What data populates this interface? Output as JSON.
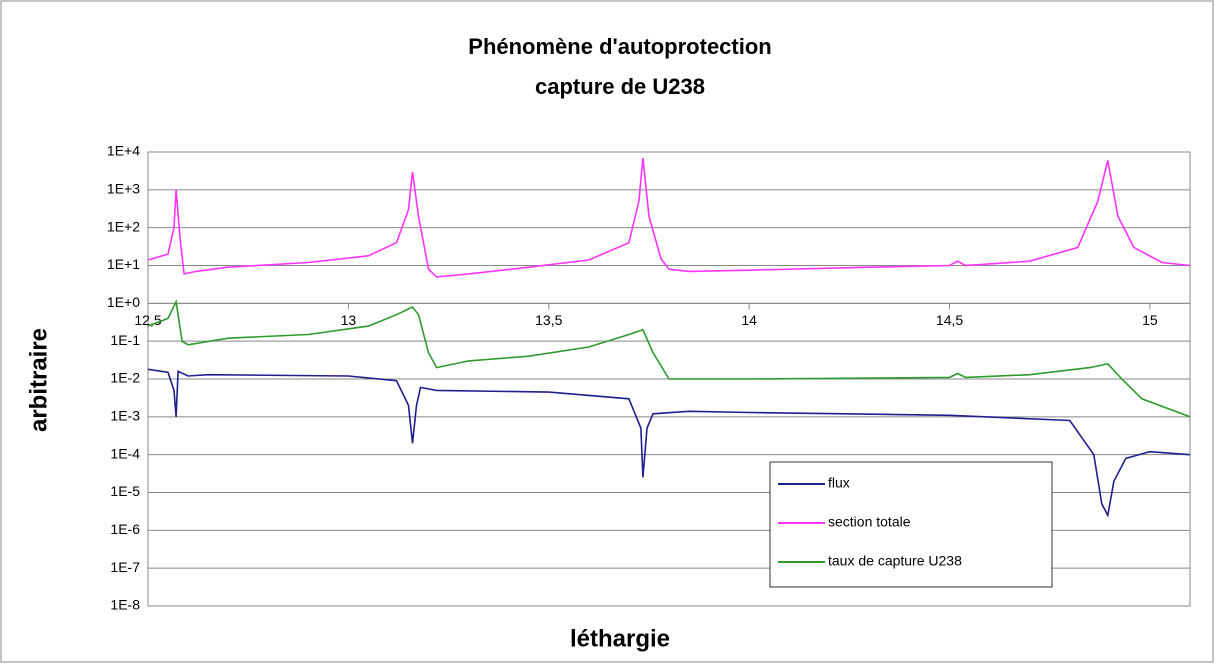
{
  "chart_data": {
    "type": "line",
    "title": "Phénomène d'autoprotection",
    "subtitle": "capture de U238",
    "xlabel": "léthargie",
    "ylabel": "arbitraire",
    "log_y": true,
    "grid": true,
    "legend": "lower right",
    "xlim": [
      12.5,
      15.1
    ],
    "ylim": [
      1e-08,
      10000
    ],
    "xticks": [
      {
        "value": 12.5,
        "label": "12,5"
      },
      13,
      {
        "value": 13.5,
        "label": "13,5"
      },
      14,
      {
        "value": 14.5,
        "label": "14,5"
      },
      15
    ],
    "yticks": [
      {
        "value": 1e-08,
        "label": "1E-8"
      },
      {
        "value": 1e-07,
        "label": "1E-7"
      },
      {
        "value": 1e-06,
        "label": "1E-6"
      },
      {
        "value": 1e-05,
        "label": "1E-5"
      },
      {
        "value": 0.0001,
        "label": "1E-4"
      },
      {
        "value": 0.001,
        "label": "1E-3"
      },
      {
        "value": 0.01,
        "label": "1E-2"
      },
      {
        "value": 0.1,
        "label": "1E-1"
      },
      {
        "value": 1,
        "label": "1E+0"
      },
      {
        "value": 10,
        "label": "1E+1"
      },
      {
        "value": 100,
        "label": "1E+2"
      },
      {
        "value": 1000,
        "label": "1E+3"
      },
      {
        "value": 10000,
        "label": "1E+4"
      }
    ],
    "series": [
      {
        "name": "flux",
        "color": "#1f1f8f",
        "x": [
          12.5,
          12.55,
          12.565,
          12.57,
          12.575,
          12.6,
          12.65,
          13.0,
          13.12,
          13.15,
          13.16,
          13.17,
          13.18,
          13.22,
          13.5,
          13.7,
          13.73,
          13.735,
          13.745,
          13.76,
          13.85,
          14.0,
          14.5,
          14.8,
          14.86,
          14.88,
          14.895,
          14.91,
          14.94,
          15.0,
          15.1
        ],
        "values": [
          0.018,
          0.015,
          0.005,
          0.001,
          0.016,
          0.012,
          0.013,
          0.012,
          0.009,
          0.002,
          0.0002,
          0.002,
          0.006,
          0.005,
          0.0045,
          0.003,
          0.0005,
          2.5e-05,
          0.0005,
          0.0012,
          0.0014,
          0.0013,
          0.0011,
          0.0008,
          0.0001,
          5e-06,
          2.5e-06,
          2e-05,
          8e-05,
          0.00012,
          0.0001
        ]
      },
      {
        "name": "section totale",
        "color": "#ff33ff",
        "x": [
          12.5,
          12.55,
          12.565,
          12.57,
          12.58,
          12.59,
          12.62,
          12.7,
          12.9,
          13.05,
          13.12,
          13.15,
          13.16,
          13.175,
          13.2,
          13.22,
          13.3,
          13.45,
          13.6,
          13.7,
          13.725,
          13.735,
          13.75,
          13.78,
          13.8,
          13.85,
          14.0,
          14.3,
          14.5,
          14.52,
          14.54,
          14.7,
          14.82,
          14.87,
          14.895,
          14.92,
          14.96,
          15.03,
          15.1
        ],
        "values": [
          14,
          20,
          100,
          1000,
          50,
          6,
          7,
          9,
          12,
          18,
          40,
          300,
          3000,
          200,
          8,
          5,
          6,
          9,
          14,
          40,
          500,
          7000,
          200,
          15,
          8,
          7,
          7.5,
          9,
          10,
          13,
          10,
          13,
          30,
          500,
          6000,
          200,
          30,
          12,
          10
        ]
      },
      {
        "name": "taux de capture U238",
        "color": "#2e9a2e",
        "x": [
          12.5,
          12.55,
          12.57,
          12.585,
          12.6,
          12.7,
          12.9,
          13.05,
          13.12,
          13.16,
          13.175,
          13.2,
          13.22,
          13.3,
          13.45,
          13.6,
          13.7,
          13.735,
          13.76,
          13.8,
          14.0,
          14.5,
          14.52,
          14.54,
          14.7,
          14.85,
          14.895,
          14.93,
          14.98,
          15.1
        ],
        "values": [
          0.25,
          0.4,
          1.1,
          0.1,
          0.08,
          0.12,
          0.15,
          0.25,
          0.5,
          0.8,
          0.5,
          0.05,
          0.02,
          0.03,
          0.04,
          0.07,
          0.15,
          0.2,
          0.05,
          0.01,
          0.01,
          0.011,
          0.014,
          0.011,
          0.013,
          0.02,
          0.025,
          0.01,
          0.003,
          0.001
        ]
      }
    ]
  }
}
